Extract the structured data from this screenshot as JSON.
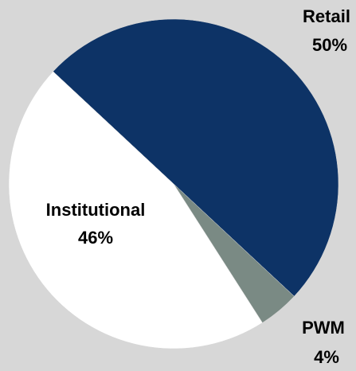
{
  "chart_data": {
    "type": "pie",
    "categories": [
      "Retail",
      "PWM",
      "Institutional"
    ],
    "values": [
      50,
      4,
      46
    ],
    "value_labels": [
      "50%",
      "4%",
      "46%"
    ],
    "colors": [
      "#0d3366",
      "#7a8a84",
      "#ffffff"
    ]
  }
}
